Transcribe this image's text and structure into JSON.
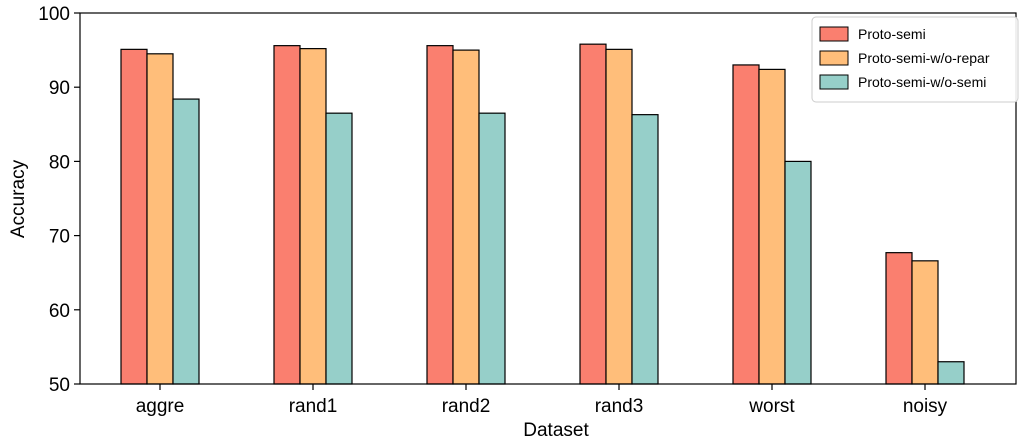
{
  "chart_data": {
    "type": "bar",
    "title": "",
    "xlabel": "Dataset",
    "ylabel": "Accuracy",
    "ylim": [
      50,
      100
    ],
    "yticks": [
      50,
      60,
      70,
      80,
      90,
      100
    ],
    "categories": [
      "aggre",
      "rand1",
      "rand2",
      "rand3",
      "worst",
      "noisy"
    ],
    "series": [
      {
        "name": "Proto-semi",
        "color": "#fa7f6f",
        "values": [
          95.1,
          95.6,
          95.6,
          95.8,
          93.0,
          67.7
        ]
      },
      {
        "name": "Proto-semi-w/o-repar",
        "color": "#ffbe7a",
        "values": [
          94.5,
          95.2,
          95.0,
          95.1,
          92.4,
          66.6
        ]
      },
      {
        "name": "Proto-semi-w/o-semi",
        "color": "#96cfc9",
        "values": [
          88.4,
          86.5,
          86.5,
          86.3,
          80.0,
          53.0
        ]
      }
    ],
    "grid": false,
    "legend_position": "top-right"
  }
}
